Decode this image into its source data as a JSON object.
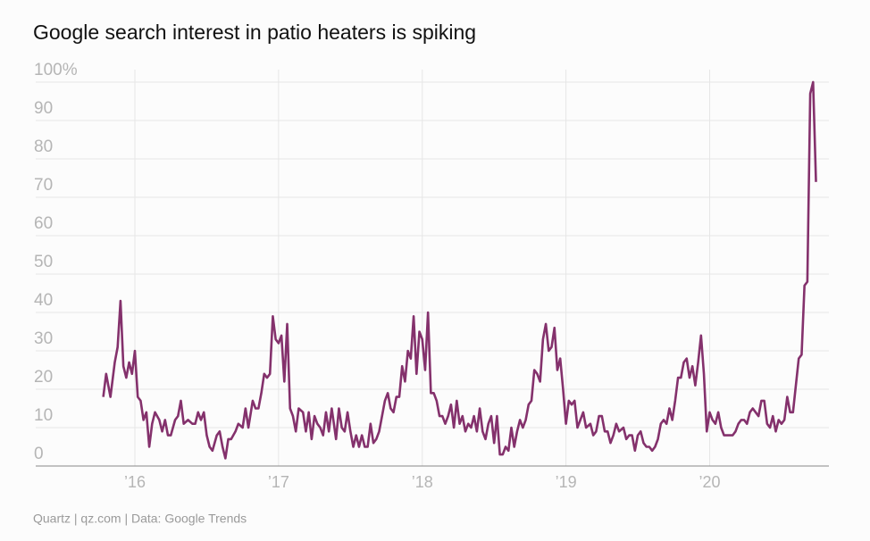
{
  "chart_data": {
    "type": "line",
    "title": "Google search interest in patio heaters is spiking",
    "source": "Quartz | qz.com | Data: Google Trends",
    "xlim": [
      2015.31,
      2020.83
    ],
    "xticks": [
      {
        "value": 2016,
        "label": "’16"
      },
      {
        "value": 2017,
        "label": "’17"
      },
      {
        "value": 2018,
        "label": "’18"
      },
      {
        "value": 2019,
        "label": "’19"
      },
      {
        "value": 2020,
        "label": "’20"
      }
    ],
    "ylim": [
      0,
      100
    ],
    "yticks": [
      0,
      10,
      20,
      30,
      40,
      50,
      60,
      70,
      80,
      90,
      {
        "value": 100,
        "label": "100%"
      }
    ],
    "grid": true,
    "x": [
      2015.78,
      2015.8,
      2015.83,
      2015.86,
      2015.88,
      2015.9,
      2015.92,
      2015.94,
      2015.96,
      2015.98,
      2016,
      2016.02,
      2016.04,
      2016.06,
      2016.08,
      2016.1,
      2016.12,
      2016.14,
      2016.17,
      2016.19,
      2016.21,
      2016.23,
      2016.25,
      2016.28,
      2016.3,
      2016.32,
      2016.34,
      2016.37,
      2016.4,
      2016.42,
      2016.44,
      2016.46,
      2016.48,
      2016.5,
      2016.52,
      2016.54,
      2016.57,
      2016.59,
      2016.61,
      2016.63,
      2016.65,
      2016.67,
      2016.7,
      2016.72,
      2016.75,
      2016.77,
      2016.79,
      2016.82,
      2016.84,
      2016.86,
      2016.88,
      2016.9,
      2016.92,
      2016.94,
      2016.96,
      2016.98,
      2017,
      2017.02,
      2017.04,
      2017.06,
      2017.08,
      2017.1,
      2017.12,
      2017.14,
      2017.17,
      2017.19,
      2017.21,
      2017.23,
      2017.25,
      2017.27,
      2017.29,
      2017.31,
      2017.33,
      2017.35,
      2017.37,
      2017.4,
      2017.42,
      2017.44,
      2017.46,
      2017.48,
      2017.5,
      2017.52,
      2017.54,
      2017.56,
      2017.58,
      2017.6,
      2017.62,
      2017.64,
      2017.66,
      2017.68,
      2017.7,
      2017.72,
      2017.74,
      2017.76,
      2017.78,
      2017.8,
      2017.82,
      2017.84,
      2017.86,
      2017.88,
      2017.9,
      2017.92,
      2017.94,
      2017.96,
      2017.98,
      2018,
      2018.02,
      2018.04,
      2018.06,
      2018.08,
      2018.1,
      2018.12,
      2018.14,
      2018.16,
      2018.18,
      2018.2,
      2018.22,
      2018.24,
      2018.26,
      2018.28,
      2018.3,
      2018.32,
      2018.34,
      2018.36,
      2018.38,
      2018.4,
      2018.42,
      2018.44,
      2018.46,
      2018.48,
      2018.5,
      2018.52,
      2018.54,
      2018.56,
      2018.58,
      2018.6,
      2018.62,
      2018.64,
      2018.66,
      2018.68,
      2018.7,
      2018.72,
      2018.74,
      2018.76,
      2018.78,
      2018.8,
      2018.82,
      2018.84,
      2018.86,
      2018.88,
      2018.9,
      2018.92,
      2018.94,
      2018.96,
      2018.98,
      2019,
      2019.02,
      2019.04,
      2019.06,
      2019.08,
      2019.1,
      2019.12,
      2019.14,
      2019.17,
      2019.19,
      2019.21,
      2019.23,
      2019.25,
      2019.27,
      2019.29,
      2019.31,
      2019.33,
      2019.35,
      2019.37,
      2019.4,
      2019.42,
      2019.44,
      2019.46,
      2019.48,
      2019.5,
      2019.52,
      2019.54,
      2019.56,
      2019.58,
      2019.6,
      2019.62,
      2019.64,
      2019.66,
      2019.68,
      2019.7,
      2019.72,
      2019.74,
      2019.76,
      2019.78,
      2019.8,
      2019.82,
      2019.84,
      2019.86,
      2019.88,
      2019.9,
      2019.92,
      2019.94,
      2019.96,
      2019.98,
      2020,
      2020.02,
      2020.04,
      2020.06,
      2020.08,
      2020.1,
      2020.12,
      2020.14,
      2020.16,
      2020.18,
      2020.2,
      2020.22,
      2020.24,
      2020.26,
      2020.28,
      2020.3,
      2020.32,
      2020.34,
      2020.36,
      2020.38,
      2020.4,
      2020.42,
      2020.44,
      2020.46,
      2020.48,
      2020.5,
      2020.52,
      2020.54,
      2020.56,
      2020.58,
      2020.6,
      2020.62,
      2020.64,
      2020.66,
      2020.68,
      2020.7,
      2020.72,
      2020.74
    ],
    "series": [
      {
        "color": "#84316c",
        "values": [
          18,
          24,
          18,
          27,
          31,
          43,
          26,
          23,
          27,
          24,
          30,
          18,
          17,
          12,
          14,
          5,
          11,
          14,
          12,
          9,
          12,
          8,
          8,
          12,
          13,
          17,
          11,
          12,
          11,
          11,
          14,
          12,
          14,
          8,
          5,
          4,
          8,
          9,
          5,
          2,
          7,
          7,
          9,
          11,
          10,
          15,
          10,
          17,
          15,
          15,
          19,
          24,
          23,
          24,
          39,
          33,
          32,
          34,
          22,
          37,
          15,
          13,
          9,
          15,
          14,
          9,
          14,
          7,
          13,
          11,
          10,
          8,
          14,
          9,
          15,
          7,
          15,
          10,
          9,
          14,
          9,
          5,
          8,
          5,
          8,
          5,
          5,
          11,
          6,
          7,
          9,
          13,
          17,
          19,
          15,
          14,
          18,
          18,
          26,
          22,
          30,
          28,
          39,
          24,
          35,
          33,
          25,
          40,
          19,
          19,
          17,
          13,
          13,
          11,
          13,
          16,
          10,
          17,
          11,
          13,
          9,
          11,
          10,
          13,
          9,
          15,
          9,
          7,
          11,
          13,
          6,
          13,
          3,
          3,
          5,
          4,
          10,
          5,
          9,
          12,
          10,
          12,
          16,
          17,
          25,
          24,
          22,
          33,
          37,
          30,
          31,
          36,
          25,
          28,
          20,
          11,
          17,
          16,
          17,
          10,
          12,
          14,
          10,
          11,
          8,
          9,
          13,
          13,
          9,
          9,
          6,
          8,
          11,
          9,
          10,
          7,
          8,
          8,
          4,
          8,
          9,
          6,
          5,
          5,
          4,
          5,
          7,
          11,
          12,
          11,
          15,
          12,
          17,
          23,
          23,
          27,
          28,
          23,
          26,
          21,
          27,
          34,
          24,
          9,
          14,
          12,
          11,
          14,
          10,
          8,
          8,
          8,
          8,
          9,
          11,
          12,
          12,
          11,
          14,
          15,
          14,
          13,
          17,
          17,
          11,
          10,
          13,
          9,
          12,
          11,
          12,
          18,
          14,
          14,
          21,
          28,
          29,
          47,
          48,
          97,
          100,
          74
        ]
      }
    ]
  }
}
